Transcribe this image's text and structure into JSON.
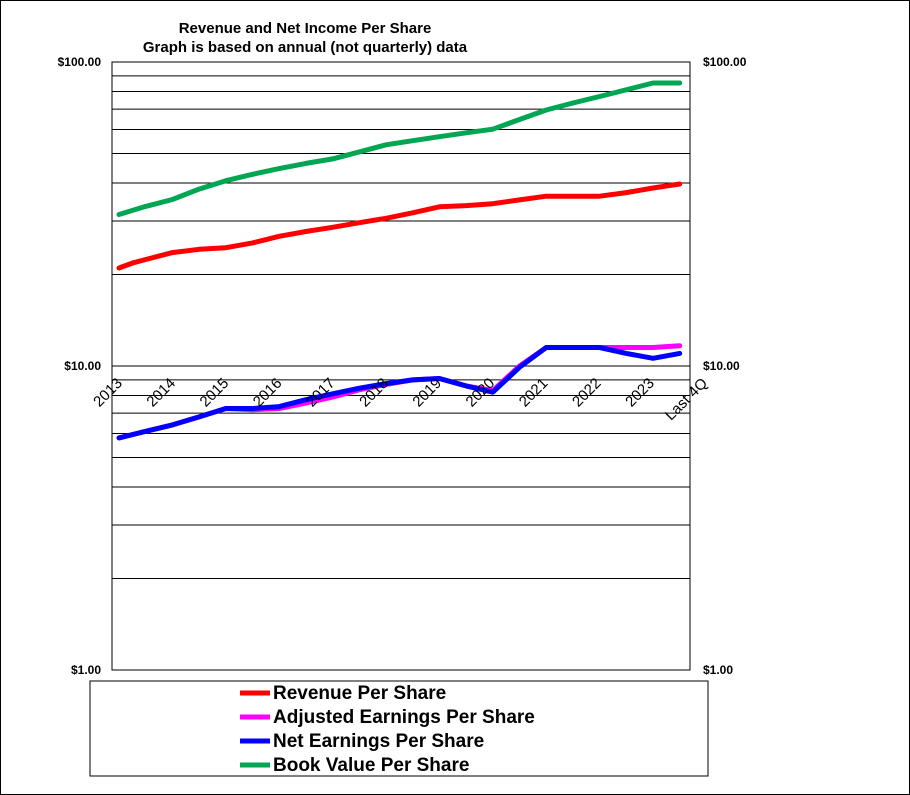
{
  "chart_data": {
    "type": "line",
    "title": "Revenue  and Net Income  Per Share",
    "subtitle": "Graph is based on annual  (not quarterly) data",
    "y_scale": "log",
    "ylim": [
      1,
      100
    ],
    "y_ticks": [
      {
        "value": 100,
        "label": "$100.00"
      },
      {
        "value": 10,
        "label": "$10.00"
      },
      {
        "value": 1,
        "label": "$1.00"
      }
    ],
    "x_labels": [
      "2013",
      "2014",
      "2015",
      "2016",
      "2017",
      "2018",
      "2019",
      "2020",
      "2021",
      "2022",
      "2023",
      "Last 4Q"
    ],
    "grid": true,
    "legend_position": "bottom",
    "series": [
      {
        "name": "Revenue Per Share",
        "color": "#ff0000",
        "x": [
          2013,
          2013.25,
          2013.5,
          2014,
          2014.5,
          2015,
          2015.5,
          2016,
          2016.5,
          2017,
          2017.5,
          2018,
          2018.5,
          2019,
          2019.5,
          2020,
          2020.5,
          2021,
          2021.5,
          2022,
          2022.5,
          2023,
          2023.5
        ],
        "values": [
          21.0,
          21.8,
          22.4,
          23.6,
          24.2,
          24.5,
          25.4,
          26.7,
          27.7,
          28.6,
          29.6,
          30.6,
          31.9,
          33.4,
          33.7,
          34.2,
          35.2,
          36.2,
          36.2,
          36.2,
          37.2,
          38.5,
          39.7
        ]
      },
      {
        "name": "Adjusted Earnings Per Share",
        "color": "#ff00ff",
        "x": [
          2013,
          2013.5,
          2014,
          2014.5,
          2015,
          2015.5,
          2016,
          2016.5,
          2017,
          2017.5,
          2018,
          2018.5,
          2019,
          2019.5,
          2020,
          2020.5,
          2021,
          2021.5,
          2022,
          2022.5,
          2023,
          2023.5
        ],
        "values": [
          5.8,
          6.1,
          6.4,
          6.8,
          7.25,
          7.18,
          7.25,
          7.55,
          7.9,
          8.35,
          8.7,
          9.0,
          9.1,
          8.6,
          8.3,
          10.0,
          11.5,
          11.5,
          11.5,
          11.5,
          11.5,
          11.65
        ]
      },
      {
        "name": "Net Earnings Per Share",
        "color": "#0000ff",
        "x": [
          2013,
          2013.5,
          2014,
          2014.5,
          2015,
          2015.5,
          2016,
          2016.5,
          2017,
          2017.5,
          2018,
          2018.5,
          2019,
          2019.5,
          2020,
          2020.5,
          2021,
          2021.5,
          2022,
          2022.5,
          2023,
          2023.5
        ],
        "values": [
          5.8,
          6.1,
          6.4,
          6.8,
          7.25,
          7.25,
          7.35,
          7.75,
          8.1,
          8.45,
          8.75,
          9.0,
          9.1,
          8.6,
          8.2,
          9.9,
          11.5,
          11.5,
          11.5,
          11.0,
          10.6,
          11.0
        ]
      },
      {
        "name": "Book Value Per Share",
        "color": "#00a651",
        "x": [
          2013,
          2013.5,
          2014,
          2014.5,
          2015,
          2015.5,
          2016,
          2016.5,
          2017,
          2017.5,
          2018,
          2018.5,
          2019,
          2019.5,
          2020,
          2020.5,
          2021,
          2021.5,
          2022,
          2022.5,
          2023,
          2023.5
        ],
        "values": [
          31.5,
          33.5,
          35.3,
          38.2,
          40.7,
          42.7,
          44.6,
          46.4,
          48.0,
          50.6,
          53.4,
          55.1,
          56.8,
          58.5,
          60.1,
          64.7,
          69.5,
          73.3,
          77.0,
          81.0,
          85.3,
          85.3
        ]
      }
    ]
  }
}
